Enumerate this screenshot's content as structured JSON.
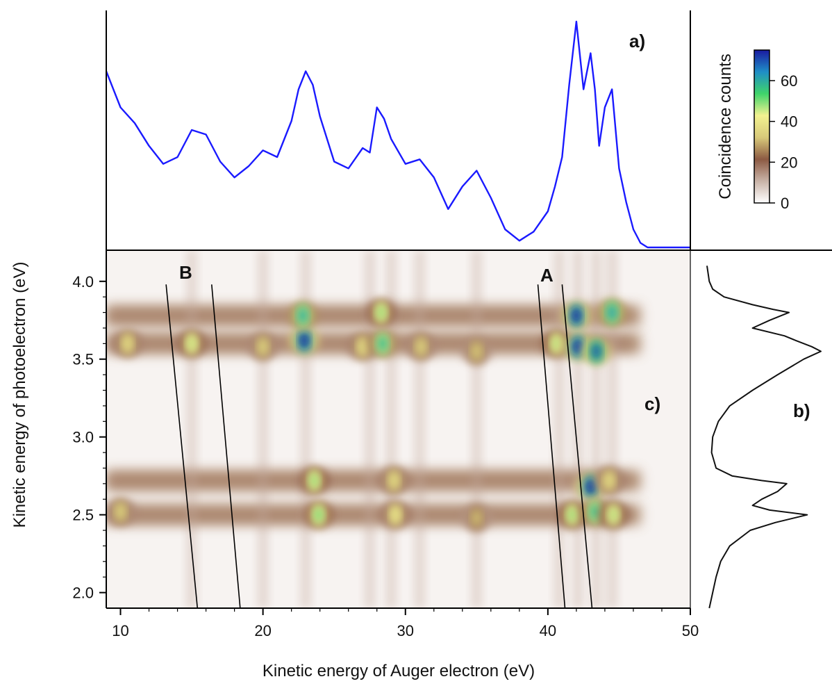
{
  "chart_data": [
    {
      "panel": "a)",
      "type": "line",
      "color": "#1a1aff",
      "x": [
        9,
        10,
        11,
        12,
        13,
        14,
        15,
        16,
        17,
        18,
        19,
        20,
        21,
        22,
        22.5,
        23,
        23.5,
        24,
        25,
        26,
        27,
        27.5,
        28,
        28.5,
        29,
        30,
        31,
        32,
        33,
        34,
        35,
        36,
        37,
        38,
        39,
        40,
        40.5,
        41,
        41.5,
        42,
        42.5,
        43,
        43.3,
        43.6,
        44,
        44.5,
        45,
        45.5,
        46,
        46.5,
        47,
        48,
        49,
        50
      ],
      "values": [
        0.78,
        0.62,
        0.55,
        0.45,
        0.37,
        0.4,
        0.52,
        0.5,
        0.38,
        0.31,
        0.36,
        0.43,
        0.4,
        0.56,
        0.7,
        0.78,
        0.72,
        0.58,
        0.38,
        0.35,
        0.44,
        0.42,
        0.62,
        0.57,
        0.48,
        0.37,
        0.39,
        0.31,
        0.17,
        0.27,
        0.34,
        0.22,
        0.08,
        0.03,
        0.07,
        0.16,
        0.27,
        0.4,
        0.72,
        1.0,
        0.7,
        0.86,
        0.7,
        0.45,
        0.62,
        0.7,
        0.35,
        0.2,
        0.08,
        0.02,
        0.0,
        0.0,
        0.0,
        0.0
      ]
    },
    {
      "panel": "b)",
      "type": "line",
      "color": "#111111",
      "y": [
        1.9,
        2.0,
        2.1,
        2.2,
        2.3,
        2.4,
        2.45,
        2.5,
        2.53,
        2.56,
        2.6,
        2.65,
        2.7,
        2.72,
        2.75,
        2.8,
        2.9,
        3.0,
        3.1,
        3.2,
        3.3,
        3.4,
        3.5,
        3.55,
        3.58,
        3.62,
        3.65,
        3.7,
        3.75,
        3.8,
        3.82,
        3.85,
        3.9,
        3.95,
        4.0,
        4.1
      ],
      "values": [
        0.02,
        0.05,
        0.08,
        0.12,
        0.2,
        0.38,
        0.6,
        0.88,
        0.55,
        0.4,
        0.48,
        0.62,
        0.7,
        0.48,
        0.22,
        0.08,
        0.04,
        0.05,
        0.1,
        0.2,
        0.4,
        0.62,
        0.85,
        1.0,
        0.92,
        0.78,
        0.68,
        0.4,
        0.55,
        0.72,
        0.58,
        0.4,
        0.15,
        0.05,
        0.02,
        0.0
      ]
    },
    {
      "panel": "c)",
      "type": "heatmap",
      "xlabel": "Kinetic energy of Auger electron (eV)",
      "ylabel": "Kinetic energy of photoelectron (eV)",
      "xlim": [
        9,
        50
      ],
      "ylim": [
        1.9,
        4.2
      ],
      "x_ticks": [
        "10",
        "20",
        "30",
        "40",
        "50"
      ],
      "y_ticks": [
        "2.0",
        "2.5",
        "3.0",
        "3.5",
        "4.0"
      ],
      "colorbar": {
        "label": "Coincidence counts",
        "range": [
          0,
          75
        ],
        "ticks": [
          "0",
          "20",
          "40",
          "60"
        ],
        "stops": [
          "#ffffff",
          "#c9b3a7",
          "#8c5a43",
          "#d8c97a",
          "#f2f290",
          "#3fd46a",
          "#1f8ec6",
          "#1a1aa0"
        ]
      },
      "rows": [
        2.5,
        2.72,
        3.6,
        3.78
      ],
      "peaks": [
        {
          "x": 10.5,
          "y": 3.6,
          "v": 38
        },
        {
          "x": 15.0,
          "y": 3.6,
          "v": 45
        },
        {
          "x": 20.0,
          "y": 3.58,
          "v": 36
        },
        {
          "x": 22.9,
          "y": 3.62,
          "v": 75
        },
        {
          "x": 22.8,
          "y": 3.78,
          "v": 60
        },
        {
          "x": 27.0,
          "y": 3.58,
          "v": 38
        },
        {
          "x": 28.4,
          "y": 3.6,
          "v": 58
        },
        {
          "x": 28.3,
          "y": 3.8,
          "v": 48
        },
        {
          "x": 31.1,
          "y": 3.58,
          "v": 36
        },
        {
          "x": 35.0,
          "y": 3.55,
          "v": 34
        },
        {
          "x": 40.6,
          "y": 3.6,
          "v": 46
        },
        {
          "x": 42.0,
          "y": 3.78,
          "v": 75
        },
        {
          "x": 42.1,
          "y": 3.58,
          "v": 75
        },
        {
          "x": 43.4,
          "y": 3.55,
          "v": 70
        },
        {
          "x": 44.5,
          "y": 3.8,
          "v": 62
        },
        {
          "x": 10.0,
          "y": 2.52,
          "v": 36
        },
        {
          "x": 23.6,
          "y": 2.72,
          "v": 48
        },
        {
          "x": 23.9,
          "y": 2.5,
          "v": 50
        },
        {
          "x": 29.3,
          "y": 2.5,
          "v": 40
        },
        {
          "x": 29.2,
          "y": 2.72,
          "v": 38
        },
        {
          "x": 35.0,
          "y": 2.48,
          "v": 32
        },
        {
          "x": 41.7,
          "y": 2.5,
          "v": 48
        },
        {
          "x": 43.0,
          "y": 2.68,
          "v": 75
        },
        {
          "x": 43.3,
          "y": 2.52,
          "v": 58
        },
        {
          "x": 44.6,
          "y": 2.5,
          "v": 46
        },
        {
          "x": 44.3,
          "y": 2.72,
          "v": 38
        }
      ],
      "guide_lines": [
        {
          "label": "B",
          "x1": 13.2,
          "y1": 3.98,
          "x2": 15.4,
          "y2": 1.9
        },
        {
          "label": "",
          "x1": 16.4,
          "y1": 3.98,
          "x2": 18.4,
          "y2": 1.9
        },
        {
          "label": "A",
          "x1": 39.3,
          "y1": 3.98,
          "x2": 41.2,
          "y2": 1.9
        },
        {
          "label": "",
          "x1": 41.0,
          "y1": 3.98,
          "x2": 43.1,
          "y2": 1.9
        }
      ]
    }
  ],
  "labels": {
    "panel_a": "a)",
    "panel_b": "b)",
    "panel_c": "c)",
    "line_A": "A",
    "line_B": "B"
  }
}
